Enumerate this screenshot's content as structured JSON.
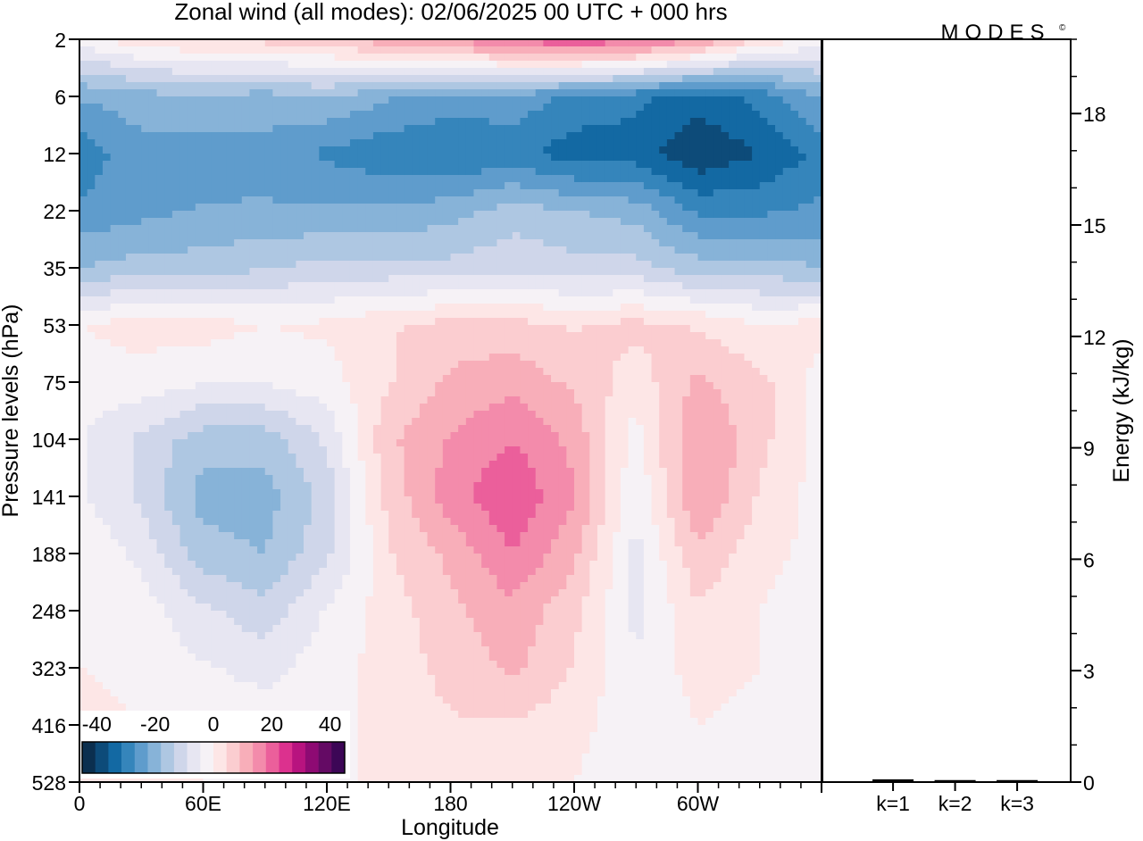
{
  "title": "Zonal wind (all modes):  02/06/2025  00 UTC  + 000 hrs",
  "brand": "MODES",
  "brand_mark": "©",
  "chart_data": [
    {
      "type": "heatmap",
      "variable": "Zonal wind",
      "xlabel": "Longitude",
      "ylabel": "Pressure levels (hPa)",
      "x_ticks": [
        "0",
        "60E",
        "120E",
        "180",
        "120W",
        "60W"
      ],
      "x_tick_degrees": [
        0,
        60,
        120,
        180,
        240,
        300
      ],
      "xlim": [
        0,
        360
      ],
      "y_ticks": [
        2,
        6,
        12,
        22,
        35,
        53,
        75,
        104,
        141,
        188,
        248,
        323,
        416,
        528
      ],
      "y_scale": "pressure levels (top 2 hPa, bottom 528 hPa)",
      "colorbar": {
        "labels": [
          "-40",
          "-20",
          "0",
          "20",
          "40"
        ],
        "label_values": [
          -40,
          -20,
          0,
          20,
          40
        ],
        "range": [
          -45,
          45
        ],
        "colors": [
          "#0b2f4f",
          "#0d4b79",
          "#1369a3",
          "#3585bb",
          "#5f9ccc",
          "#87b3d8",
          "#aec7e2",
          "#cfd6ea",
          "#e7e6f2",
          "#f6f2f6",
          "#fde6e6",
          "#fbcdd0",
          "#f8aeb9",
          "#f38bab",
          "#eb5f9b",
          "#dc318e",
          "#b8137f",
          "#8e0a73",
          "#640a64",
          "#3c0656"
        ]
      },
      "field": {
        "lon_step": 30,
        "lon": [
          0,
          30,
          60,
          90,
          120,
          150,
          180,
          210,
          240,
          270,
          300,
          330,
          360
        ],
        "levels": [
          2,
          6,
          12,
          22,
          35,
          53,
          75,
          104,
          141,
          188,
          248,
          323,
          416,
          528
        ],
        "values": [
          [
            -2,
            3,
            5,
            6,
            8,
            12,
            14,
            20,
            22,
            20,
            14,
            4,
            -2
          ],
          [
            -22,
            -20,
            -18,
            -20,
            -18,
            -22,
            -24,
            -24,
            -28,
            -30,
            -34,
            -30,
            -22
          ],
          [
            -30,
            -24,
            -26,
            -24,
            -28,
            -30,
            -32,
            -30,
            -34,
            -34,
            -40,
            -36,
            -30
          ],
          [
            -26,
            -24,
            -22,
            -22,
            -22,
            -22,
            -20,
            -16,
            -18,
            -20,
            -28,
            -28,
            -26
          ],
          [
            -18,
            -16,
            -16,
            -14,
            -12,
            -12,
            -12,
            -10,
            -12,
            -12,
            -16,
            -16,
            -18
          ],
          [
            0,
            2,
            2,
            0,
            1,
            4,
            6,
            6,
            4,
            6,
            4,
            0,
            2
          ],
          [
            -2,
            -2,
            -4,
            -4,
            -2,
            4,
            10,
            12,
            8,
            2,
            10,
            6,
            -2
          ],
          [
            -4,
            -10,
            -16,
            -16,
            -8,
            8,
            14,
            18,
            12,
            -2,
            14,
            6,
            -2
          ],
          [
            -4,
            -10,
            -20,
            -20,
            -12,
            6,
            16,
            22,
            14,
            -4,
            14,
            4,
            -2
          ],
          [
            0,
            -6,
            -16,
            -18,
            -10,
            4,
            10,
            18,
            10,
            -6,
            8,
            2,
            -2
          ],
          [
            0,
            -2,
            -8,
            -12,
            -4,
            2,
            8,
            12,
            6,
            -6,
            4,
            0,
            -4
          ],
          [
            0,
            -2,
            -4,
            -6,
            -2,
            2,
            6,
            10,
            4,
            -4,
            2,
            0,
            -2
          ],
          [
            2,
            0,
            -2,
            -2,
            -2,
            2,
            4,
            4,
            2,
            -4,
            0,
            -2,
            -2
          ],
          [
            2,
            2,
            0,
            -2,
            -2,
            2,
            4,
            2,
            0,
            -4,
            -2,
            -2,
            -2
          ]
        ]
      }
    },
    {
      "type": "bar",
      "ylabel": "Energy (kJ/kg)",
      "categories": [
        "k=1",
        "k=2",
        "k=3"
      ],
      "values": [
        0.05,
        0.03,
        0.03
      ],
      "ylim": [
        0,
        20
      ],
      "y_ticks": [
        0,
        3,
        6,
        9,
        12,
        15,
        18
      ],
      "y_axis_side": "right"
    }
  ]
}
